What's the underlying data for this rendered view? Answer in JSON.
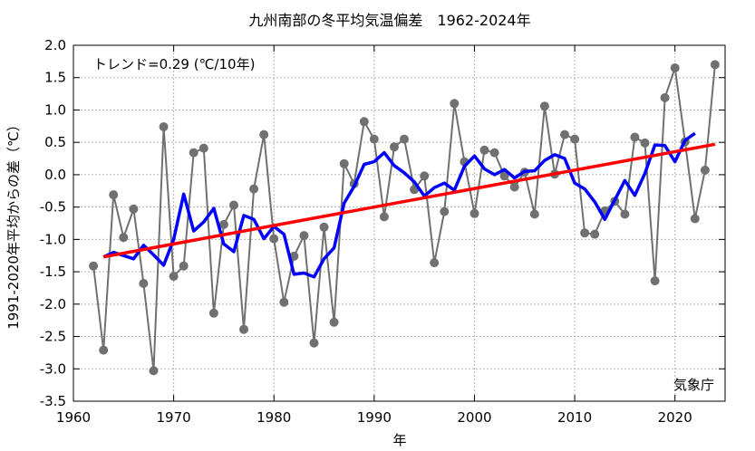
{
  "chart_data": {
    "type": "line",
    "title": "九州南部の冬平均気温偏差　1962-2024年",
    "xlabel": "年",
    "ylabel": "1991-2020年平均からの差（℃）",
    "trend_label": "トレンド=0.29 (℃/10年)",
    "source": "気象庁",
    "xlim": [
      1960,
      2025
    ],
    "ylim": [
      -3.5,
      2.0
    ],
    "x_ticks": [
      1960,
      1970,
      1980,
      1990,
      2000,
      2010,
      2020
    ],
    "x_tick_labels": [
      "1960",
      "1970",
      "1980",
      "1990",
      "2000",
      "2010",
      "2020"
    ],
    "y_ticks": [
      -3.5,
      -3.0,
      -2.5,
      -2.0,
      -1.5,
      -1.0,
      -0.5,
      0.0,
      0.5,
      1.0,
      1.5,
      2.0
    ],
    "y_tick_labels": [
      "-3.5",
      "-3.0",
      "-2.5",
      "-2.0",
      "-1.5",
      "-1.0",
      "-0.5",
      "0.0",
      "0.5",
      "1.0",
      "1.5",
      "2.0"
    ],
    "grid": true,
    "colors": {
      "annual": "#707070",
      "moving_average": "#0000ff",
      "trend": "#ff0000"
    },
    "series": [
      {
        "key": "annual",
        "x": [
          1962,
          1963,
          1964,
          1965,
          1966,
          1967,
          1968,
          1969,
          1970,
          1971,
          1972,
          1973,
          1974,
          1975,
          1976,
          1977,
          1978,
          1979,
          1980,
          1981,
          1982,
          1983,
          1984,
          1985,
          1986,
          1987,
          1988,
          1989,
          1990,
          1991,
          1992,
          1993,
          1994,
          1995,
          1996,
          1997,
          1998,
          1999,
          2000,
          2001,
          2002,
          2003,
          2004,
          2005,
          2006,
          2007,
          2008,
          2009,
          2010,
          2011,
          2012,
          2013,
          2014,
          2015,
          2016,
          2017,
          2018,
          2019,
          2020,
          2021,
          2022,
          2023,
          2024
        ],
        "values": [
          -1.41,
          -2.71,
          -0.31,
          -0.97,
          -0.53,
          -1.68,
          -3.03,
          0.74,
          -1.57,
          -1.41,
          0.34,
          0.41,
          -2.14,
          -0.77,
          -0.47,
          -2.39,
          -0.22,
          0.62,
          -0.99,
          -1.97,
          -1.26,
          -0.94,
          -2.6,
          -0.81,
          -2.28,
          0.17,
          -0.14,
          0.82,
          0.55,
          -0.65,
          0.43,
          0.55,
          -0.23,
          -0.02,
          -1.36,
          -0.57,
          1.1,
          0.2,
          -0.6,
          0.38,
          0.34,
          -0.02,
          -0.19,
          0.04,
          -0.61,
          1.06,
          0.01,
          0.62,
          0.55,
          -0.9,
          -0.92,
          -0.56,
          -0.41,
          -0.61,
          0.58,
          0.49,
          -1.64,
          1.19,
          1.65,
          0.51,
          -0.68,
          0.07,
          1.7
        ]
      },
      {
        "key": "moving_average",
        "x": [
          1963,
          1964,
          1965,
          1966,
          1967,
          1968,
          1969,
          1970,
          1971,
          1972,
          1973,
          1974,
          1975,
          1976,
          1977,
          1978,
          1979,
          1980,
          1981,
          1982,
          1983,
          1984,
          1985,
          1986,
          1987,
          1988,
          1989,
          1990,
          1991,
          1992,
          1993,
          1994,
          1995,
          1996,
          1997,
          1998,
          1999,
          2000,
          2001,
          2002,
          2003,
          2004,
          2005,
          2006,
          2007,
          2008,
          2009,
          2010,
          2011,
          2012,
          2013,
          2014,
          2015,
          2016,
          2017,
          2018,
          2019,
          2020,
          2021,
          2022
        ],
        "values": [
          -1.27,
          -1.2,
          -1.25,
          -1.3,
          -1.09,
          -1.24,
          -1.4,
          -1.0,
          -0.3,
          -0.87,
          -0.73,
          -0.52,
          -1.07,
          -1.19,
          -0.63,
          -0.69,
          -0.99,
          -0.8,
          -0.92,
          -1.54,
          -1.52,
          -1.58,
          -1.3,
          -1.13,
          -0.44,
          -0.18,
          0.16,
          0.2,
          0.34,
          0.14,
          0.03,
          -0.11,
          -0.33,
          -0.2,
          -0.13,
          -0.24,
          0.13,
          0.29,
          0.09,
          0.0,
          0.08,
          -0.05,
          0.05,
          0.06,
          0.22,
          0.31,
          0.25,
          -0.13,
          -0.22,
          -0.42,
          -0.69,
          -0.39,
          -0.09,
          -0.32,
          0.02,
          0.46,
          0.45,
          0.2,
          0.53,
          0.64
        ]
      },
      {
        "key": "trend",
        "x": [
          1963,
          2024
        ],
        "values": [
          -1.27,
          0.47
        ]
      }
    ]
  }
}
